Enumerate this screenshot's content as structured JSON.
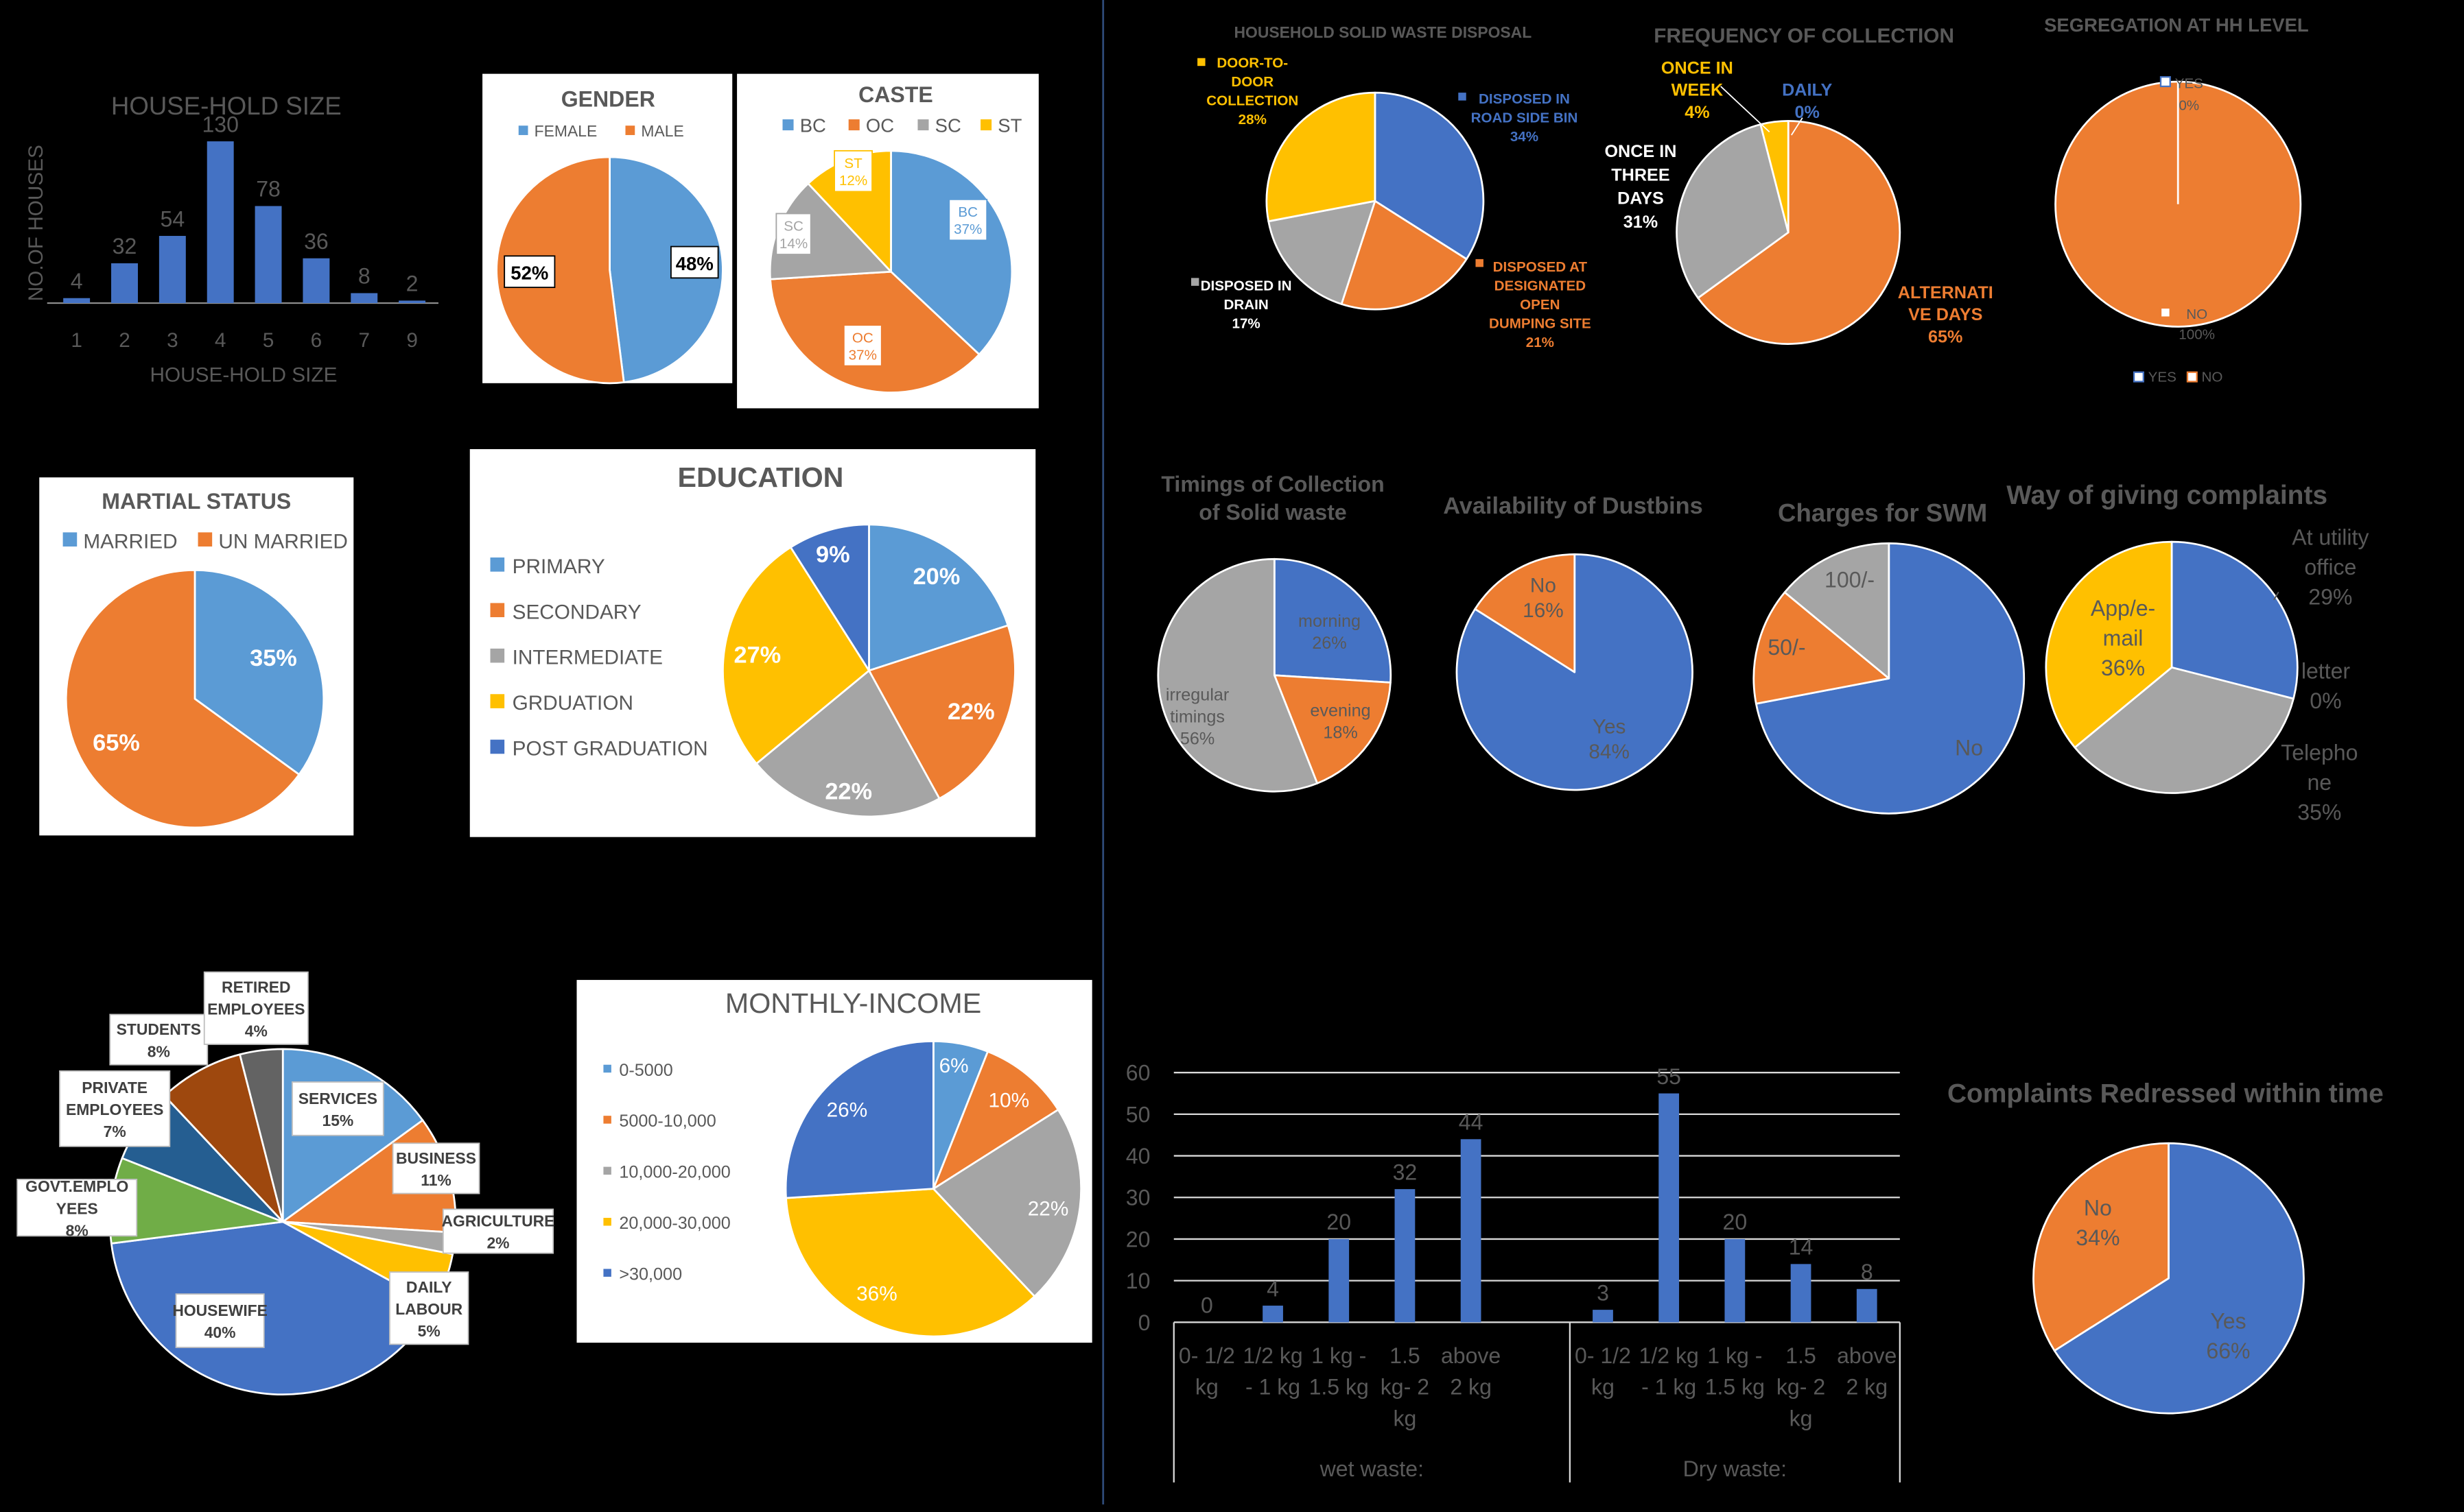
{
  "colors": {
    "blue": "#4472C4",
    "orange": "#ED7D31",
    "gray": "#A5A5A5",
    "yellow": "#FFC000",
    "dblue": "#255E91",
    "green": "#70AD47",
    "brown": "#9E480E",
    "gray2": "#636363",
    "lblue": "#5B9BD5"
  },
  "chart_data": [
    {
      "id": "household_size",
      "type": "bar",
      "title": "HOUSE-HOLD SIZE",
      "xlabel": "HOUSE-HOLD SIZE",
      "ylabel": "NO.OF HOUSES",
      "categories": [
        "1",
        "2",
        "3",
        "4",
        "5",
        "6",
        "7",
        "9"
      ],
      "values": [
        4,
        32,
        54,
        130,
        78,
        36,
        8,
        2
      ],
      "ylim": [
        0,
        140
      ]
    },
    {
      "id": "gender",
      "type": "pie",
      "title": "GENDER",
      "labels": [
        "FEMALE",
        "MALE"
      ],
      "values": [
        48,
        52
      ],
      "data_labels": [
        "48%",
        "52%"
      ]
    },
    {
      "id": "caste",
      "type": "pie",
      "title": "CASTE",
      "labels": [
        "BC",
        "OC",
        "SC",
        "ST"
      ],
      "values": [
        37,
        37,
        14,
        12
      ],
      "data_labels": [
        [
          "BC",
          "37%"
        ],
        [
          "OC",
          "37%"
        ],
        [
          "SC",
          "14%"
        ],
        [
          "ST",
          "12%"
        ]
      ]
    },
    {
      "id": "marital_status",
      "type": "pie",
      "title": "MARTIAL STATUS",
      "labels": [
        "MARRIED",
        "UN MARRIED"
      ],
      "values": [
        35,
        65
      ],
      "data_labels": [
        "35%",
        "65%"
      ]
    },
    {
      "id": "education",
      "type": "pie",
      "title": "EDUCATION",
      "labels": [
        "PRIMARY",
        "SECONDARY",
        "INTERMEDIATE",
        "GRDUATION",
        "POST GRADUATION"
      ],
      "values": [
        20,
        22,
        22,
        27,
        9
      ],
      "data_labels": [
        "20%",
        "22%",
        "22%",
        "27%",
        "9%"
      ]
    },
    {
      "id": "occupation",
      "type": "pie",
      "labels": [
        "SERVICES",
        "BUSINESS",
        "AGRICULTURE",
        "DAILY LABOUR",
        "HOUSEWIFE",
        "GOVT.EMPLOYEES",
        "PRIVATE EMPLOYEES",
        "STUDENTS",
        "RETIRED EMPLOYEES"
      ],
      "values": [
        15,
        11,
        2,
        5,
        40,
        8,
        7,
        8,
        4
      ],
      "data_labels": [
        [
          "SERVICES",
          "15%"
        ],
        [
          "BUSINESS",
          "11%"
        ],
        [
          "AGRICULTURE",
          "2%"
        ],
        [
          "DAILY",
          "LABOUR",
          "5%"
        ],
        [
          "HOUSEWIFE",
          "40%"
        ],
        [
          "GOVT.EMPLO",
          "YEES",
          "8%"
        ],
        [
          "PRIVATE",
          "EMPLOYEES",
          "7%"
        ],
        [
          "STUDENTS",
          "8%"
        ],
        [
          "RETIRED",
          "EMPLOYEES",
          "4%"
        ]
      ]
    },
    {
      "id": "monthly_income",
      "type": "pie",
      "title": "MONTHLY-INCOME",
      "labels": [
        "0-5000",
        "5000-10,000",
        "10,000-20,000",
        "20,000-30,000",
        ">30,000"
      ],
      "values": [
        6,
        10,
        22,
        36,
        26
      ],
      "data_labels": [
        "6%",
        "10%",
        "22%",
        "36%",
        "26%"
      ]
    },
    {
      "id": "waste_disposal",
      "type": "pie",
      "title": "HOUSEHOLD SOLID WASTE DISPOSAL",
      "labels": [
        "DISPOSED IN ROAD SIDE BIN",
        "DISPOSED AT DESIGNATED OPEN DUMPING SITE",
        "DISPOSED IN DRAIN",
        "DOOR-TO-DOOR COLLECTION"
      ],
      "values": [
        34,
        21,
        17,
        28
      ],
      "data_labels": [
        [
          "DISPOSED IN",
          "ROAD SIDE BIN",
          "34%"
        ],
        [
          "DISPOSED AT",
          "DESIGNATED",
          "OPEN",
          "DUMPING SITE",
          "21%"
        ],
        [
          "DISPOSED IN",
          "DRAIN",
          "17%"
        ],
        [
          "DOOR-TO-",
          "DOOR",
          "COLLECTION",
          "28%"
        ]
      ]
    },
    {
      "id": "collection_frequency",
      "type": "pie",
      "title": "FREQUENCY OF COLLECTION",
      "labels": [
        "DAILY",
        "ALTERNATIVE DAYS",
        "ONCE IN THREE DAYS",
        "ONCE IN WEEK"
      ],
      "values": [
        0,
        65,
        31,
        4
      ],
      "data_labels": [
        [
          "DAILY",
          "0%"
        ],
        [
          "ALTERNATI",
          "VE DAYS",
          "65%"
        ],
        [
          "ONCE IN",
          "THREE",
          "DAYS",
          "31%"
        ],
        [
          "ONCE IN",
          "WEEK",
          "4%"
        ]
      ]
    },
    {
      "id": "segregation",
      "type": "pie",
      "title": "SEGREGATION AT HH LEVEL",
      "labels": [
        "YES",
        "NO"
      ],
      "values": [
        0,
        100
      ],
      "data_labels": [
        [
          "YES",
          "0%"
        ],
        [
          "NO",
          "100%"
        ]
      ]
    },
    {
      "id": "collection_timings",
      "type": "pie",
      "title": "Timings of Collection of Solid waste",
      "title_lines": [
        "Timings of Collection",
        "of Solid waste"
      ],
      "labels": [
        "morning",
        "evening",
        "irregular timings"
      ],
      "values": [
        26,
        18,
        56
      ],
      "data_labels": [
        [
          "morning",
          "26%"
        ],
        [
          "evening",
          "18%"
        ],
        [
          "irregular",
          "timings",
          "56%"
        ]
      ]
    },
    {
      "id": "dustbins",
      "type": "pie",
      "title": "Availability of Dustbins",
      "labels": [
        "Yes",
        "No"
      ],
      "values": [
        84,
        16
      ],
      "data_labels": [
        [
          "Yes",
          "84%"
        ],
        [
          "No",
          "16%"
        ]
      ]
    },
    {
      "id": "swm_charges",
      "type": "pie",
      "title": "Charges for SWM",
      "labels": [
        "No",
        "50/-",
        "100/-"
      ],
      "values": [
        72,
        14,
        14
      ],
      "data_labels": [
        [
          "No"
        ],
        [
          "50/-"
        ],
        [
          "100/-"
        ]
      ]
    },
    {
      "id": "complaint_ways",
      "type": "pie",
      "title": "Way of giving complaints",
      "labels": [
        "At utility office",
        "letter",
        "Telephone",
        "App/e-mail"
      ],
      "values": [
        29,
        0,
        35,
        36
      ],
      "data_labels": [
        [
          "At utility",
          "office",
          "29%"
        ],
        [
          "letter",
          "0%"
        ],
        [
          "Telepho",
          "ne",
          "35%"
        ],
        [
          "App/e-",
          "mail",
          "36%"
        ]
      ]
    },
    {
      "id": "waste_quantity",
      "type": "bar",
      "groups": [
        {
          "name": "wet waste:",
          "categories": [
            "0- 1/2 kg",
            "1/2 kg - 1 kg",
            "1 kg - 1.5 kg",
            "1.5 kg- 2 kg",
            "above 2 kg"
          ],
          "values": [
            0,
            4,
            20,
            32,
            44
          ]
        },
        {
          "name": "Dry waste:",
          "categories": [
            "0- 1/2 kg",
            "1/2 kg - 1 kg",
            "1 kg - 1.5 kg",
            "1.5 kg- 2 kg",
            "above 2 kg"
          ],
          "values": [
            3,
            55,
            20,
            14,
            8
          ]
        }
      ],
      "cat_lines": [
        [
          "0- 1/2",
          "kg"
        ],
        [
          "1/2 kg",
          "- 1 kg"
        ],
        [
          "1 kg -",
          "1.5 kg"
        ],
        [
          "1.5",
          "kg- 2",
          "kg"
        ],
        [
          "above",
          "2 kg"
        ]
      ],
      "yticks": [
        0,
        10,
        20,
        30,
        40,
        50,
        60
      ],
      "ylim": [
        0,
        60
      ],
      "grid": true
    },
    {
      "id": "complaints_redressed",
      "type": "pie",
      "title": "Complaints Redressed within time",
      "labels": [
        "Yes",
        "No"
      ],
      "values": [
        66,
        34
      ],
      "data_labels": [
        [
          "Yes",
          "66%"
        ],
        [
          "No",
          "34%"
        ]
      ]
    }
  ]
}
